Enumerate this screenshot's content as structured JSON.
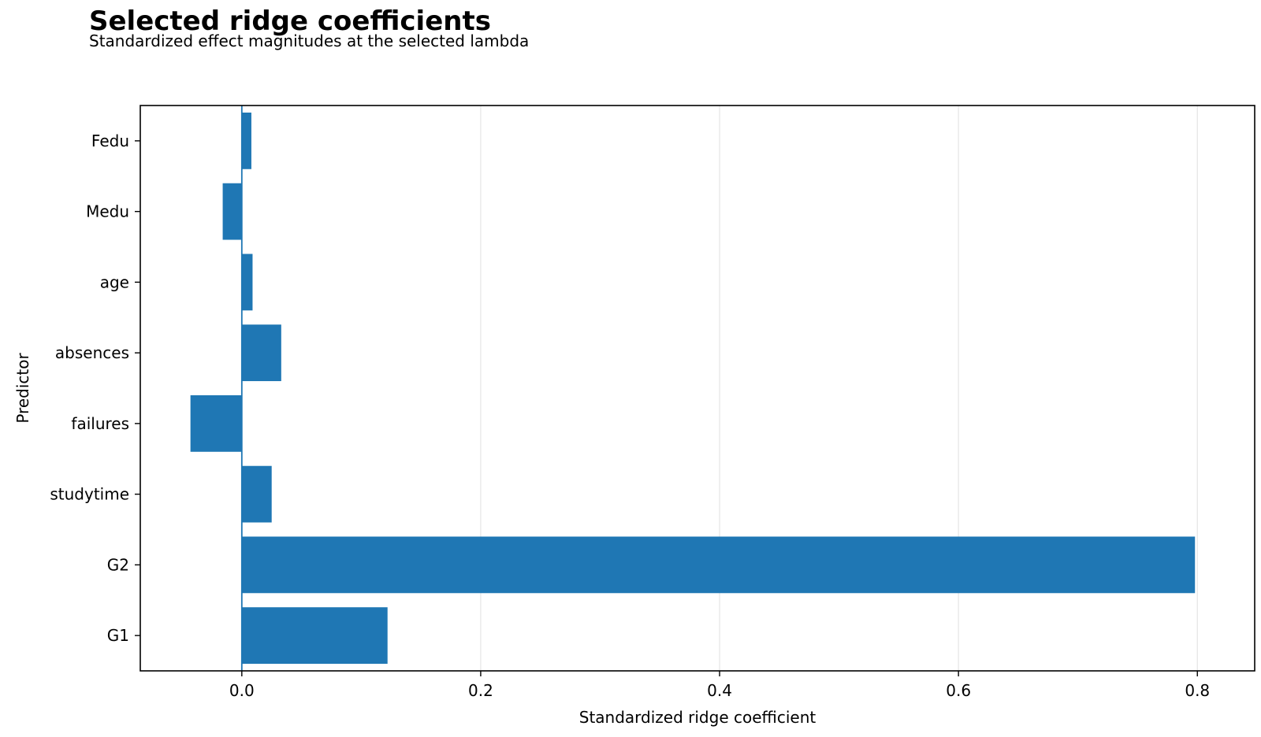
{
  "chart_data": {
    "type": "bar",
    "orientation": "horizontal",
    "title": "Selected ridge coefficients",
    "subtitle": "Standardized effect magnitudes at the selected lambda",
    "xlabel": "Standardized ridge coefficient",
    "ylabel": "Predictor",
    "categories": [
      "G1",
      "G2",
      "studytime",
      "failures",
      "absences",
      "age",
      "Medu",
      "Fedu"
    ],
    "values": [
      0.122,
      0.798,
      0.025,
      -0.043,
      0.033,
      0.009,
      -0.016,
      0.008
    ],
    "xlim": [
      -0.085,
      0.848
    ],
    "xticks": [
      0.0,
      0.2,
      0.4,
      0.6,
      0.8
    ],
    "xtick_labels": [
      "0.0",
      "0.2",
      "0.4",
      "0.6",
      "0.8"
    ],
    "grid": "vertical",
    "zero_line": true,
    "bar_color": "#1f77b4",
    "grid_color": "#e5e5e5"
  }
}
